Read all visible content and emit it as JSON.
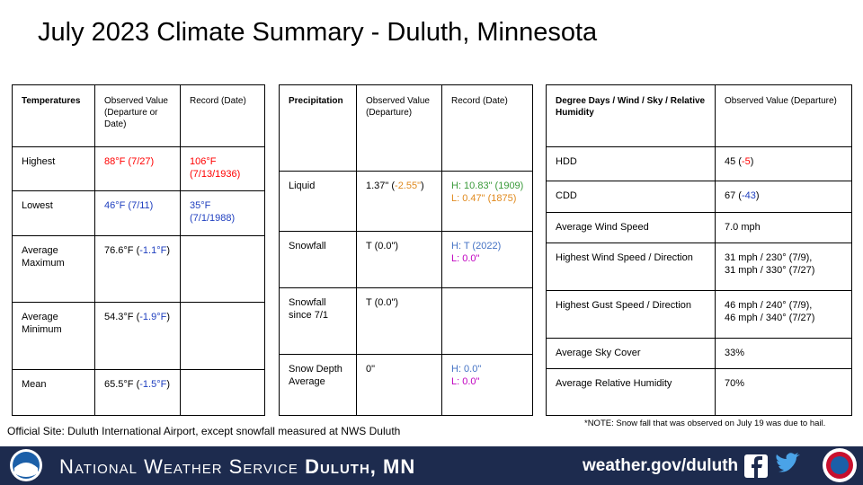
{
  "title": "July 2023 Climate Summary - Duluth, Minnesota",
  "tables": [
    {
      "columns": [
        "Temperatures",
        "Observed Value (Departure or Date)",
        "Record (Date)"
      ],
      "rows": [
        [
          [
            {
              "text": "Highest"
            }
          ],
          [
            {
              "text": "88°F (7/27)",
              "color": "#ff0000"
            }
          ],
          [
            {
              "text": "106°F (7/13/1936)",
              "color": "#ff0000"
            }
          ]
        ],
        [
          [
            {
              "text": "Lowest"
            }
          ],
          [
            {
              "text": "46°F (7/11)",
              "color": "#1f3fbf"
            }
          ],
          [
            {
              "text": "35°F (7/1/1988)",
              "color": "#1f3fbf"
            }
          ]
        ],
        [
          [
            {
              "text": "Average Maximum"
            }
          ],
          [
            {
              "text": "76.6°F ("
            },
            {
              "text": "-1.1°F",
              "color": "#1f3fbf"
            },
            {
              "text": ")"
            }
          ],
          []
        ],
        [
          [
            {
              "text": "Average Minimum"
            }
          ],
          [
            {
              "text": "54.3°F ("
            },
            {
              "text": "-1.9°F",
              "color": "#1f3fbf"
            },
            {
              "text": ")"
            }
          ],
          []
        ],
        [
          [
            {
              "text": "Mean"
            }
          ],
          [
            {
              "text": "65.5°F ("
            },
            {
              "text": "-1.5°F",
              "color": "#1f3fbf"
            },
            {
              "text": ")"
            }
          ],
          []
        ]
      ]
    },
    {
      "columns": [
        "Precipitation",
        "Observed Value (Departure)",
        "Record (Date)"
      ],
      "rows": [
        [
          [
            {
              "text": "Liquid"
            }
          ],
          [
            {
              "text": "1.37\" ("
            },
            {
              "text": "-2.55\"",
              "color": "#e08a1e"
            },
            {
              "text": ")"
            }
          ],
          [
            {
              "text": "H: 10.83\" (1909)",
              "color": "#3a9a3a"
            },
            {
              "text": "L: 0.47\" (1875)",
              "color": "#e08a1e",
              "block": true
            }
          ]
        ],
        [
          [
            {
              "text": "Snowfall"
            }
          ],
          [
            {
              "text": "T (0.0\")"
            }
          ],
          [
            {
              "text": "H: T (2022)",
              "color": "#4472c4"
            },
            {
              "text": "L: 0.0\"",
              "color": "#c000c0",
              "block": true
            }
          ]
        ],
        [
          [
            {
              "text": "Snowfall since 7/1"
            }
          ],
          [
            {
              "text": "T (0.0\")"
            }
          ],
          []
        ],
        [
          [
            {
              "text": "Snow Depth Average"
            }
          ],
          [
            {
              "text": "0\""
            }
          ],
          [
            {
              "text": "H: 0.0\"",
              "color": "#4472c4"
            },
            {
              "text": "L: 0.0\"",
              "color": "#c000c0",
              "block": true
            }
          ]
        ]
      ]
    },
    {
      "columns": [
        "Degree Days / Wind / Sky / Relative Humidity",
        "Observed Value (Departure)"
      ],
      "rows": [
        [
          [
            {
              "text": "HDD"
            }
          ],
          [
            {
              "text": "45 ("
            },
            {
              "text": "-5",
              "color": "#ff0000"
            },
            {
              "text": ")"
            }
          ]
        ],
        [
          [
            {
              "text": "CDD"
            }
          ],
          [
            {
              "text": "67 ("
            },
            {
              "text": "-43",
              "color": "#1f3fbf"
            },
            {
              "text": ")"
            }
          ]
        ],
        [
          [
            {
              "text": "Average Wind Speed"
            }
          ],
          [
            {
              "text": "7.0 mph"
            }
          ]
        ],
        [
          [
            {
              "text": "Highest Wind Speed / Direction"
            }
          ],
          [
            {
              "text": "31 mph / 230° (7/9),"
            },
            {
              "text": "31 mph / 330° (7/27)",
              "block": true
            }
          ]
        ],
        [
          [
            {
              "text": "Highest Gust Speed / Direction"
            }
          ],
          [
            {
              "text": "46 mph / 240° (7/9),"
            },
            {
              "text": "46 mph / 340° (7/27)",
              "block": true
            }
          ]
        ],
        [
          [
            {
              "text": "Average Sky Cover"
            }
          ],
          [
            {
              "text": "33%"
            }
          ]
        ],
        [
          [
            {
              "text": "Average Relative Humidity"
            }
          ],
          [
            {
              "text": "70%"
            }
          ]
        ]
      ]
    }
  ],
  "footnote": "Official Site: Duluth International Airport, except snowfall measured at NWS Duluth",
  "note": "*NOTE:  Snow fall that was observed on July 19 was due to hail.",
  "footer": {
    "agency": "National Weather Service",
    "office": "Duluth, MN",
    "url": "weather.gov/duluth"
  }
}
